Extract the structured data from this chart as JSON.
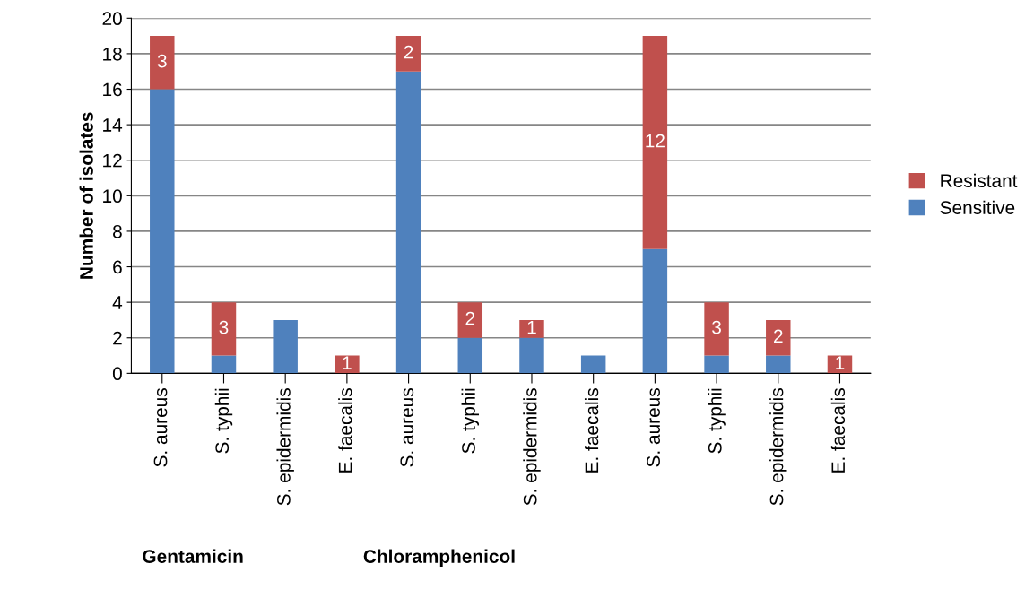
{
  "chart_data": {
    "type": "bar",
    "stacked": true,
    "ylabel": "Number of isolates",
    "categories": [
      "S. aureus",
      "S. typhii",
      "S. epidermidis",
      "E. faecalis",
      "S. aureus",
      "S. typhii",
      "S. epidermidis",
      "E. faecalis",
      "S. aureus",
      "S. typhii",
      "S. epidermidis",
      "E. faecalis"
    ],
    "series": [
      {
        "name": "Sensitive",
        "color": "#4f81bd",
        "values": [
          16,
          1,
          3,
          0,
          17,
          2,
          2,
          1,
          7,
          1,
          1,
          0
        ]
      },
      {
        "name": "Resistant",
        "color": "#c0504d",
        "values": [
          3,
          3,
          0,
          1,
          2,
          2,
          1,
          0,
          12,
          3,
          2,
          1
        ],
        "value_labels": [
          "3",
          "3",
          null,
          "1",
          "2",
          "2",
          "1",
          null,
          "12",
          "3",
          "2",
          "1"
        ]
      }
    ],
    "annotations": [
      "Gentamicin",
      "Chloramphenicol"
    ],
    "ylim": [
      0,
      20
    ],
    "yticks": [
      0,
      2,
      4,
      6,
      8,
      10,
      12,
      14,
      16,
      18,
      20
    ],
    "grid": "y",
    "legend": "right"
  }
}
